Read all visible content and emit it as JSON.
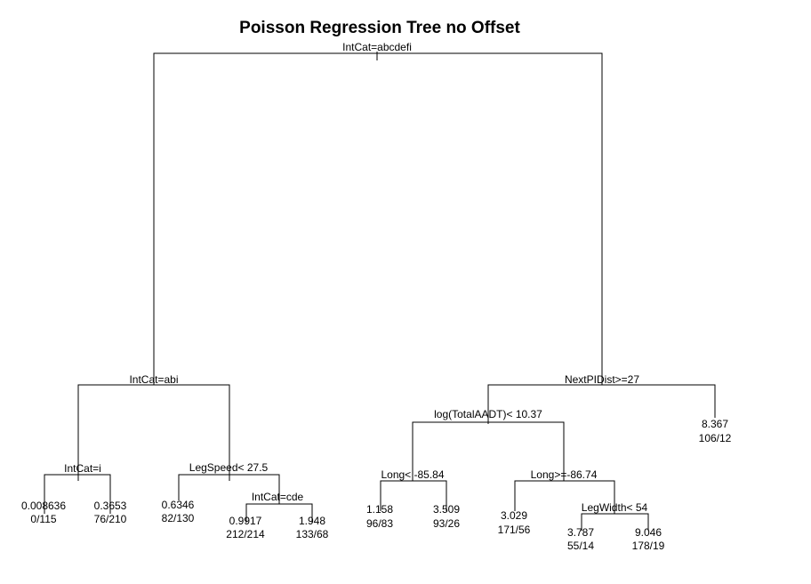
{
  "title": "Poisson Regression Tree no Offset",
  "splits": {
    "root": "IntCat=abcdefi",
    "left": "IntCat=abi",
    "left_left": "IntCat=i",
    "left_right": "LegSpeed< 27.5",
    "left_right_right": "IntCat=cde",
    "right": "NextPIDist>=27",
    "right_left": "log(TotalAADT)< 10.37",
    "right_left_left": "Long< -85.84",
    "right_left_right": "Long>=-86.74",
    "right_left_right_right": "LegWidth< 54"
  },
  "leaves": {
    "l1": {
      "value": "0.008636",
      "counts": "0/115"
    },
    "l2": {
      "value": "0.3653",
      "counts": "76/210"
    },
    "l3": {
      "value": "0.6346",
      "counts": "82/130"
    },
    "l4": {
      "value": "0.9917",
      "counts": "212/214"
    },
    "l5": {
      "value": "1.948",
      "counts": "133/68"
    },
    "l6": {
      "value": "1.158",
      "counts": "96/83"
    },
    "l7": {
      "value": "3.509",
      "counts": "93/26"
    },
    "l8": {
      "value": "3.029",
      "counts": "171/56"
    },
    "l9": {
      "value": "3.787",
      "counts": "55/14"
    },
    "l10": {
      "value": "9.046",
      "counts": "178/19"
    },
    "l11": {
      "value": "8.367",
      "counts": "106/12"
    }
  }
}
